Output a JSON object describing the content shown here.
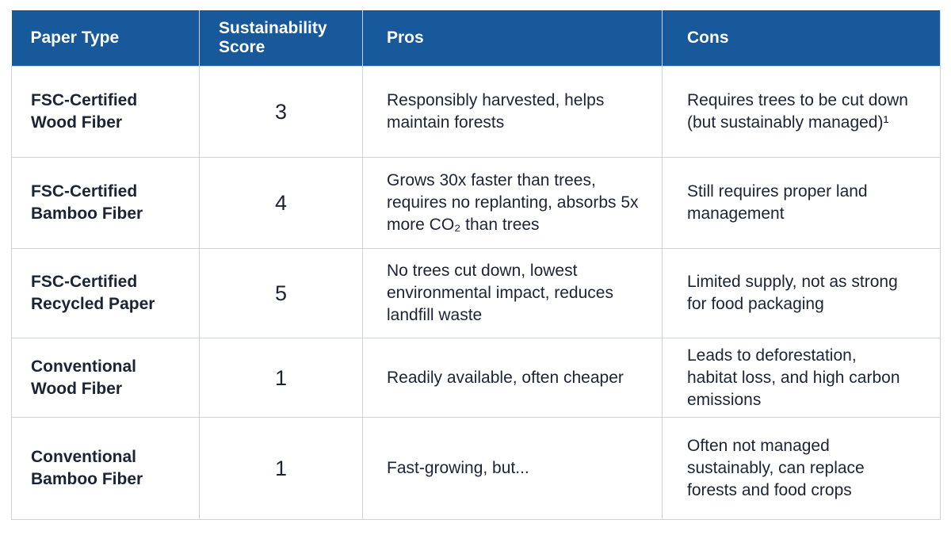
{
  "table": {
    "headers": [
      "Paper Type",
      "Sustainability Score",
      "Pros",
      "Cons"
    ],
    "rows": [
      [
        "FSC-Certified Wood Fiber",
        3,
        "Responsibly harvested, helps maintain forests",
        "Requires trees to be cut down (but sustainably managed)¹"
      ],
      [
        "FSC-Certified Bamboo Fiber",
        4,
        "Grows 30x faster than trees, requires no replanting, absorbs 5x more CO₂ than trees",
        "Still requires proper land management"
      ],
      [
        "FSC-Certified Recycled Paper",
        5,
        "No trees cut down, lowest environmental impact, reduces landfill waste",
        "Limited supply, not as strong for food packaging"
      ],
      [
        "Conventional Wood Fiber",
        1,
        "Readily available, often cheaper",
        "Leads to deforestation, habitat loss, and high carbon emissions"
      ],
      [
        "Conventional Bamboo Fiber",
        1,
        "Fast-growing, but...",
        "Often not managed sustainably, can replace forests and food crops"
      ]
    ]
  }
}
